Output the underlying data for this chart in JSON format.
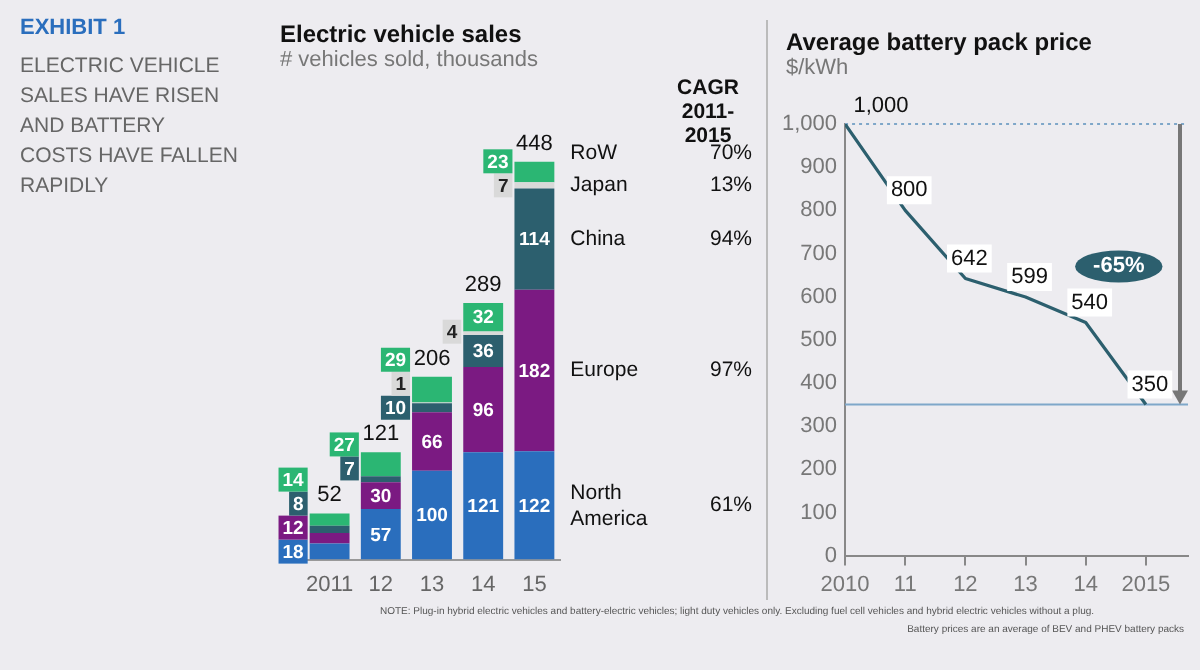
{
  "chart_data": [
    {
      "type": "other",
      "title": "EXHIBIT 1",
      "annotations": [
        "ELECTRIC VEHICLE SALES HAVE RISEN AND BATTERY COSTS HAVE FALLEN RAPIDLY"
      ]
    },
    {
      "type": "bar",
      "title": "Electric vehicle sales",
      "subtitle": "# vehicles sold, thousands",
      "categories": [
        "2011",
        "12",
        "13",
        "14",
        "15"
      ],
      "stacked": true,
      "data_labels": true,
      "totals": [
        "52",
        "121",
        "206",
        "289",
        "448"
      ],
      "series": [
        {
          "name": "North America",
          "color": "#2a6ebd",
          "values": [
            18,
            57,
            100,
            121,
            122
          ]
        },
        {
          "name": "Europe",
          "color": "#7b1a82",
          "values": [
            12,
            30,
            66,
            96,
            182
          ]
        },
        {
          "name": "China",
          "color": "#2c5f6e",
          "values": [
            8,
            7,
            10,
            36,
            114
          ]
        },
        {
          "name": "Japan",
          "color": "#d9d9d9",
          "values": [
            null,
            null,
            1,
            4,
            7
          ]
        },
        {
          "name": "RoW",
          "color": "#2bb673",
          "values": [
            14,
            27,
            29,
            32,
            23
          ]
        }
      ],
      "annotations": [
        "CAGR 2011-2015",
        "61%",
        "97%",
        "94%",
        "13%",
        "70%",
        "NOTE: Plug-in hybrid electric vehicles and battery-electric vehicles; light duty vehicles only. Excluding fuel cell vehicles and hybrid electric vehicles without a plug."
      ]
    },
    {
      "type": "line",
      "title": "Average battery pack price",
      "subtitle": "$/kWh",
      "x": [
        2010,
        2011,
        2012,
        2013,
        2014,
        2015
      ],
      "series": [
        {
          "color": "#2c5f6e",
          "values": [
            1000,
            800,
            642,
            599,
            540,
            350
          ],
          "value_labels": [
            "1,000",
            "800",
            "642",
            "599",
            "540",
            "350"
          ]
        }
      ],
      "xlim": [
        2010,
        2015.7
      ],
      "xticks": [
        2010,
        {
          "value": 2011,
          "label": "11"
        },
        {
          "value": 2012,
          "label": "12"
        },
        {
          "value": 2013,
          "label": "13"
        },
        {
          "value": 2014,
          "label": "14"
        },
        2015
      ],
      "ylim": [
        0,
        1000
      ],
      "yticks": [
        0,
        100,
        200,
        300,
        400,
        500,
        600,
        700,
        800,
        900,
        {
          "value": 1000,
          "label": "1,000"
        }
      ],
      "grid": false,
      "marker": "none",
      "line_style": "solid",
      "ref_lines": [
        {
          "axis": "y",
          "value": 1000,
          "color": "#7fa7c9",
          "line_style": "dotted"
        },
        {
          "axis": "y",
          "value": 350,
          "color": "#7fa7c9",
          "line_style": "solid"
        }
      ],
      "annotations": [
        {
          "text": "-65%",
          "x": 2014.55,
          "y": 670
        },
        "Battery prices are an average of BEV and PHEV battery packs"
      ]
    }
  ]
}
